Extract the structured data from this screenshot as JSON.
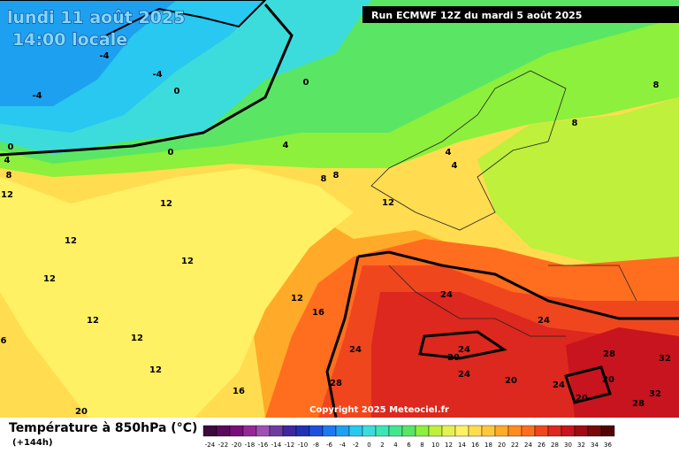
{
  "header": {
    "date": "lundi 11 août 2025",
    "time": "14:00 locale",
    "run": "Run ECMWF 12Z du mardi 5 août 2025"
  },
  "map": {
    "contour_labels": [
      -4,
      -4,
      -4,
      0,
      0,
      0,
      0,
      4,
      4,
      4,
      4,
      8,
      8,
      8,
      8,
      8,
      12,
      12,
      12,
      12,
      12,
      12,
      12,
      12,
      12,
      12,
      16,
      16,
      6,
      20,
      24,
      24,
      24,
      24,
      24,
      24,
      20,
      20,
      20,
      20,
      28,
      28,
      28,
      32,
      32
    ],
    "copyright": "Copyright 2025 Meteociel.fr"
  },
  "legend": {
    "title": "Température à 850hPa (°C)",
    "lead": "(+144h)",
    "classes": [
      -24,
      -22,
      -20,
      -18,
      -16,
      -14,
      -12,
      -10,
      -8,
      -6,
      -4,
      -2,
      0,
      2,
      4,
      6,
      8,
      10,
      12,
      14,
      16,
      18,
      20,
      22,
      24,
      26,
      28,
      30,
      32,
      34,
      36
    ],
    "colors": [
      "#3c0a3c",
      "#5a0a5a",
      "#780f78",
      "#962896",
      "#a050b4",
      "#6e3ca0",
      "#3c28a0",
      "#1e32b4",
      "#1e50dc",
      "#1e78f0",
      "#1ea0f0",
      "#28c8f0",
      "#3cdcdc",
      "#3ce6b4",
      "#46e68c",
      "#5ae664",
      "#8cf03c",
      "#bef03c",
      "#e6f050",
      "#fff064",
      "#ffdc50",
      "#ffc83c",
      "#ffaa28",
      "#ff8c1e",
      "#ff6e1e",
      "#f0461e",
      "#dc281e",
      "#c8141e",
      "#a00a14",
      "#780a0a",
      "#500505"
    ]
  }
}
